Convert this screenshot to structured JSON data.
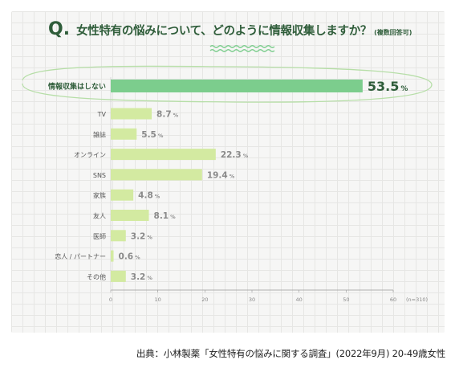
{
  "question": {
    "mark": "Q.",
    "text": "女性特有の悩みについて、どのように情報収集しますか？",
    "note": "(複数回答可)"
  },
  "chart_data": {
    "type": "bar",
    "orientation": "horizontal",
    "categories": [
      "情報収集はしない",
      "TV",
      "雑誌",
      "オンライン",
      "SNS",
      "家族",
      "友人",
      "医師",
      "恋人 / パートナー",
      "その他"
    ],
    "values": [
      53.5,
      8.7,
      5.5,
      22.3,
      19.4,
      4.8,
      8.1,
      3.2,
      0.6,
      3.2
    ],
    "value_unit": "%",
    "xlim": [
      0,
      60
    ],
    "xticks": [
      0,
      10,
      20,
      30,
      40,
      50,
      60
    ],
    "highlight_index": 0,
    "sample_note": "(n=310)",
    "colors": {
      "highlight_bar": "#7ccd8d",
      "bar": "#d3eaa1",
      "highlight_value": "#2f5d3a",
      "value": "#8a8a8a",
      "label": "#555555",
      "axis": "#999999",
      "highlight_outline": "#b6dea7"
    }
  },
  "source": "出典：小林製薬「女性特有の悩みに関する調査」(2022年9月) 20-49歳女性"
}
